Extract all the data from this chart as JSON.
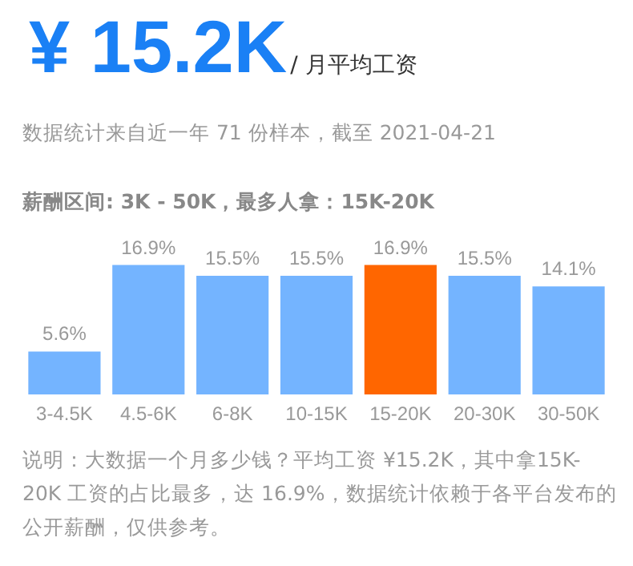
{
  "chart_data": {
    "type": "bar",
    "title": "¥ 15.2K",
    "subtitle": "/ 月平均工资",
    "annotations": [
      "数据统计来自近一年 71 份样本，截至 2021-04-21",
      "薪酬区间: 3K - 50K，最多人拿：15K-20K",
      "说明：大数据一个月多少钱？平均工资 ¥15.2K，其中拿15K-20K 工资的占比最多，达 16.9%，数据统计依赖于各平台发布的公开薪酬，仅供参考。"
    ],
    "categories": [
      "3-4.5K",
      "4.5-6K",
      "6-8K",
      "10-15K",
      "15-20K",
      "20-30K",
      "30-50K"
    ],
    "values": [
      5.6,
      16.9,
      15.5,
      15.5,
      16.9,
      15.5,
      14.1
    ],
    "value_labels": [
      "5.6%",
      "16.9%",
      "15.5%",
      "15.5%",
      "16.9%",
      "15.5%",
      "14.1%"
    ],
    "colors": [
      "#74b4ff",
      "#74b4ff",
      "#74b4ff",
      "#74b4ff",
      "#ff6600",
      "#74b4ff",
      "#74b4ff"
    ]
  }
}
